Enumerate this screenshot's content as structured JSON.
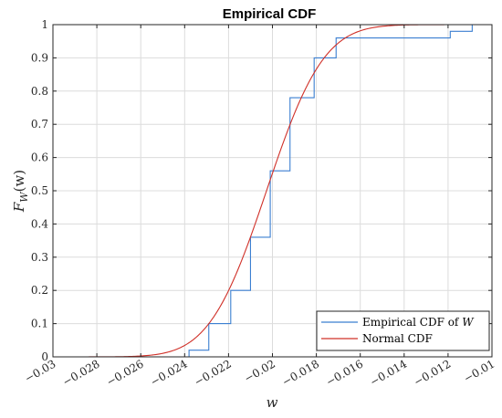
{
  "chart_data": {
    "type": "line",
    "title": "Empirical CDF",
    "xlabel_main": "w",
    "ylabel_main": "F",
    "ylabel_sub": "W",
    "ylabel_tail": "(w)",
    "xlim": [
      -0.03,
      -0.01
    ],
    "ylim": [
      0,
      1
    ],
    "grid": true,
    "legend_placement": "bottom-right",
    "x_ticks": [
      {
        "value": -0.03,
        "label": "−0.03"
      },
      {
        "value": -0.028,
        "label": "−0.028"
      },
      {
        "value": -0.026,
        "label": "−0.026"
      },
      {
        "value": -0.024,
        "label": "−0.024"
      },
      {
        "value": -0.022,
        "label": "−0.022"
      },
      {
        "value": -0.02,
        "label": "−0.02"
      },
      {
        "value": -0.018,
        "label": "−0.018"
      },
      {
        "value": -0.016,
        "label": "−0.016"
      },
      {
        "value": -0.014,
        "label": "−0.014"
      },
      {
        "value": -0.012,
        "label": "−0.012"
      },
      {
        "value": -0.01,
        "label": "−0.01"
      }
    ],
    "y_ticks": [
      {
        "value": 0,
        "label": "0"
      },
      {
        "value": 0.1,
        "label": "0.1"
      },
      {
        "value": 0.2,
        "label": "0.2"
      },
      {
        "value": 0.3,
        "label": "0.3"
      },
      {
        "value": 0.4,
        "label": "0.4"
      },
      {
        "value": 0.5,
        "label": "0.5"
      },
      {
        "value": 0.6,
        "label": "0.6"
      },
      {
        "value": 0.7,
        "label": "0.7"
      },
      {
        "value": 0.8,
        "label": "0.8"
      },
      {
        "value": 0.9,
        "label": "0.9"
      },
      {
        "value": 1,
        "label": "1"
      }
    ],
    "series": [
      {
        "name": "Empirical CDF of W",
        "legend_prefix": "Empirical CDF of ",
        "legend_var": "W",
        "color": "#3b7fd1",
        "kind": "step",
        "x": [
          -0.0238,
          -0.0229,
          -0.0219,
          -0.021,
          -0.0201,
          -0.0192,
          -0.0181,
          -0.0171,
          -0.0119,
          -0.0109
        ],
        "y": [
          0.02,
          0.1,
          0.2,
          0.36,
          0.56,
          0.78,
          0.9,
          0.96,
          0.98,
          1.0
        ]
      },
      {
        "name": "Normal CDF",
        "color": "#d03028",
        "kind": "normal_cdf",
        "mu": -0.02027,
        "sigma": 0.00205
      }
    ]
  }
}
